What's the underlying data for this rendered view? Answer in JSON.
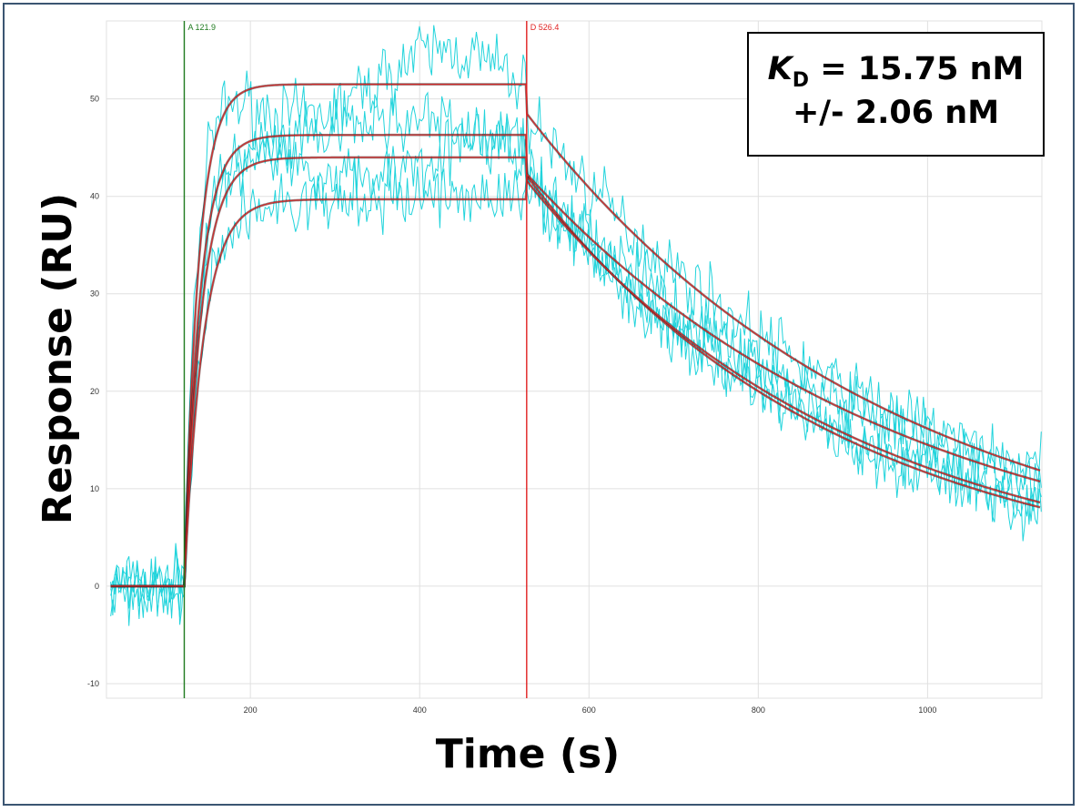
{
  "chart_data": {
    "type": "line",
    "xlabel": "Time (s)",
    "ylabel": "Response (RU)",
    "xlim": [
      30,
      1135
    ],
    "ylim": [
      -11.5,
      58
    ],
    "x_ticks": [
      200,
      400,
      600,
      800,
      1000
    ],
    "y_ticks": [
      -10,
      0,
      10,
      20,
      30,
      40,
      50
    ],
    "grid": true,
    "markers": [
      {
        "label": "A 121.9",
        "x": 121.9,
        "color": "#1e7a1e"
      },
      {
        "label": "D 526.4",
        "x": 526.4,
        "color": "#e02020"
      }
    ],
    "association": {
      "start": 121.9,
      "end": 526.4
    },
    "dissociation": {
      "start": 526.4,
      "end": 1135
    },
    "fit_curves": [
      {
        "plateau": 51.5,
        "ka_rate": 0.06,
        "kd_rate": 0.00232
      },
      {
        "plateau": 46.3,
        "ka_rate": 0.055,
        "kd_rate": 0.00272
      },
      {
        "plateau": 44.0,
        "ka_rate": 0.05,
        "kd_rate": 0.0026
      },
      {
        "plateau": 39.7,
        "ka_rate": 0.045,
        "kd_rate": 0.00226
      }
    ],
    "colors": {
      "data": "#22d4dc",
      "fit": "#d42a2a",
      "grid": "#e0e0e0"
    }
  },
  "annotation": {
    "kd_symbol": "K",
    "kd_subscript": "D",
    "kd_value": " = 15.75 nM",
    "kd_error": "+/- 2.06 nM"
  }
}
